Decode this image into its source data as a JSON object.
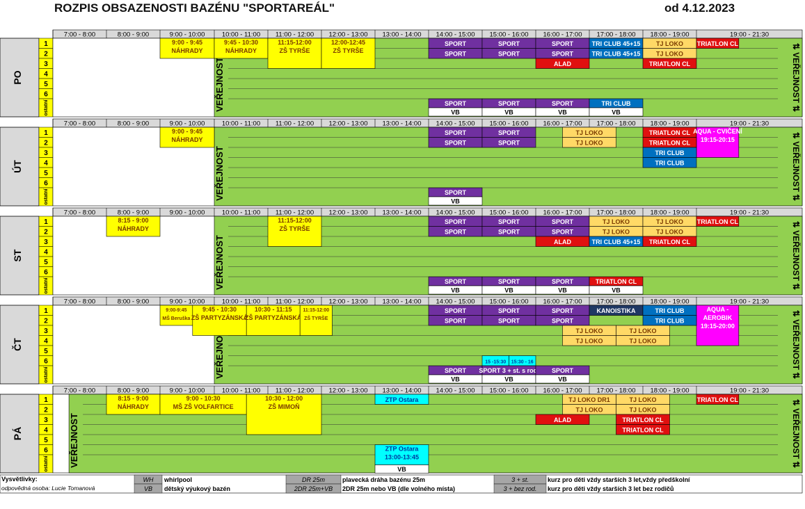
{
  "header": {
    "title": "ROZPIS OBSAZENOSTI BAZÉNU \"SPORTAREÁL\"",
    "date": "od 4.12.2023"
  },
  "time_columns": [
    "7:00 - 8:00",
    "8:00 - 9:00",
    "9:00 - 10:00",
    "10:00 - 11:00",
    "11:00 - 12:00",
    "12:00 - 13:00",
    "13:00 - 14:00",
    "14:00 - 15:00",
    "15:00 - 16:00",
    "16:00 - 17:00",
    "17:00 - 18:00",
    "18:00 - 19:00",
    "19:00 - 21:30"
  ],
  "lane_labels": [
    "1",
    "2",
    "3",
    "4",
    "5",
    "6",
    "ostatní"
  ],
  "public_label": "VEŘEJNOST",
  "colors": {
    "green": "#92D050",
    "yellow": "#FFFF00",
    "purple": "#7030A0",
    "blue": "#0070C0",
    "red": "#E01010",
    "orange": "#FFD966",
    "magenta": "#FF00FF",
    "cyan": "#00FFFF",
    "navy": "#1F3864",
    "grey": "#D9D9D9"
  },
  "days": [
    {
      "name": "PO",
      "start_hour": 10,
      "blocks": [
        {
          "lane": 0,
          "t0": 9,
          "t1": 10,
          "rows": 2,
          "fill": "yellow",
          "lines": [
            "9:00 - 9:45",
            "NÁHRADY"
          ]
        },
        {
          "lane": 0,
          "t0": 10,
          "t1": 11,
          "rows": 2,
          "fill": "yellow",
          "lines": [
            "9:45 - 10:30",
            "NÁHRADY"
          ]
        },
        {
          "lane": 0,
          "t0": 11,
          "t1": 12,
          "rows": 3,
          "fill": "yellow",
          "lines": [
            "11:15-12:00",
            "ZŠ TYRŠE"
          ]
        },
        {
          "lane": 0,
          "t0": 12,
          "t1": 13,
          "rows": 3,
          "fill": "yellow",
          "lines": [
            "12:00-12:45",
            "ZŠ TYRŠE"
          ]
        },
        {
          "lane": 0,
          "t0": 14,
          "t1": 15,
          "fill": "purple",
          "lines": [
            "SPORT"
          ]
        },
        {
          "lane": 0,
          "t0": 15,
          "t1": 16,
          "fill": "purple",
          "lines": [
            "SPORT"
          ]
        },
        {
          "lane": 0,
          "t0": 16,
          "t1": 17,
          "fill": "purple",
          "lines": [
            "SPORT"
          ]
        },
        {
          "lane": 0,
          "t0": 17,
          "t1": 18,
          "fill": "blue",
          "lines": [
            "TRI CLUB 45+15"
          ]
        },
        {
          "lane": 0,
          "t0": 18,
          "t1": 19,
          "fill": "orange",
          "lines": [
            "TJ LOKO"
          ]
        },
        {
          "lane": 0,
          "t0": 19,
          "t1": 20,
          "fill": "red",
          "lines": [
            "TRIATLON CL"
          ]
        },
        {
          "lane": 1,
          "t0": 14,
          "t1": 15,
          "fill": "purple",
          "lines": [
            "SPORT"
          ]
        },
        {
          "lane": 1,
          "t0": 15,
          "t1": 16,
          "fill": "purple",
          "lines": [
            "SPORT"
          ]
        },
        {
          "lane": 1,
          "t0": 16,
          "t1": 17,
          "fill": "purple",
          "lines": [
            "SPORT"
          ]
        },
        {
          "lane": 1,
          "t0": 17,
          "t1": 18,
          "fill": "blue",
          "lines": [
            "TRI CLUB 45+15"
          ]
        },
        {
          "lane": 1,
          "t0": 18,
          "t1": 19,
          "fill": "orange",
          "lines": [
            "TJ LOKO"
          ]
        },
        {
          "lane": 2,
          "t0": 16,
          "t1": 17,
          "fill": "red",
          "lines": [
            "ALAD"
          ]
        },
        {
          "lane": 2,
          "t0": 18,
          "t1": 19,
          "fill": "red",
          "lines": [
            "TRIATLON CL"
          ]
        },
        {
          "lane": 6,
          "t0": 14,
          "t1": 15,
          "fill": "purple",
          "lines": [
            "SPORT"
          ],
          "vb": "VB"
        },
        {
          "lane": 6,
          "t0": 15,
          "t1": 16,
          "fill": "purple",
          "lines": [
            "SPORT"
          ],
          "vb": "VB"
        },
        {
          "lane": 6,
          "t0": 16,
          "t1": 17,
          "fill": "purple",
          "lines": [
            "SPORT"
          ],
          "vb": "VB"
        },
        {
          "lane": 6,
          "t0": 17,
          "t1": 18,
          "fill": "blue",
          "lines": [
            "TRI CLUB"
          ],
          "vb": "VB"
        }
      ]
    },
    {
      "name": "ÚT",
      "start_hour": 10,
      "blocks": [
        {
          "lane": 0,
          "t0": 9,
          "t1": 10,
          "rows": 2,
          "fill": "yellow",
          "lines": [
            "9:00 - 9:45",
            "NÁHRADY"
          ]
        },
        {
          "lane": 0,
          "t0": 14,
          "t1": 15,
          "fill": "purple",
          "lines": [
            "SPORT"
          ]
        },
        {
          "lane": 0,
          "t0": 15,
          "t1": 16,
          "fill": "purple",
          "lines": [
            "SPORT"
          ]
        },
        {
          "lane": 0,
          "t0": 16.5,
          "t1": 17.5,
          "fill": "orange",
          "lines": [
            "TJ LOKO"
          ]
        },
        {
          "lane": 0,
          "t0": 18,
          "t1": 19,
          "fill": "red",
          "lines": [
            "TRIATLON CL"
          ]
        },
        {
          "lane": 0,
          "t0": 19,
          "t1": 20,
          "rows": 3,
          "fill": "magenta",
          "lines": [
            "AQUA - CVIČENÍ",
            "19:15-20:15"
          ]
        },
        {
          "lane": 1,
          "t0": 14,
          "t1": 15,
          "fill": "purple",
          "lines": [
            "SPORT"
          ]
        },
        {
          "lane": 1,
          "t0": 15,
          "t1": 16,
          "fill": "purple",
          "lines": [
            "SPORT"
          ]
        },
        {
          "lane": 1,
          "t0": 16.5,
          "t1": 17.5,
          "fill": "orange",
          "lines": [
            "TJ LOKO"
          ]
        },
        {
          "lane": 1,
          "t0": 18,
          "t1": 19,
          "fill": "red",
          "lines": [
            "TRIATLON CL"
          ]
        },
        {
          "lane": 2,
          "t0": 18,
          "t1": 19,
          "fill": "blue",
          "lines": [
            "TRI CLUB"
          ]
        },
        {
          "lane": 3,
          "t0": 18,
          "t1": 19,
          "fill": "blue",
          "lines": [
            "TRI CLUB"
          ]
        },
        {
          "lane": 6,
          "t0": 14,
          "t1": 15,
          "fill": "purple",
          "lines": [
            "SPORT"
          ],
          "vb": "VB"
        }
      ]
    },
    {
      "name": "ST",
      "start_hour": 10,
      "blocks": [
        {
          "lane": 0,
          "t0": 8,
          "t1": 9,
          "rows": 2,
          "fill": "yellow",
          "lines": [
            "8:15 - 9:00",
            "NÁHRADY"
          ]
        },
        {
          "lane": 0,
          "t0": 11,
          "t1": 12,
          "rows": 3,
          "fill": "yellow",
          "lines": [
            "11:15-12:00",
            "ZŠ TYRŠE"
          ]
        },
        {
          "lane": 0,
          "t0": 14,
          "t1": 15,
          "fill": "purple",
          "lines": [
            "SPORT"
          ]
        },
        {
          "lane": 0,
          "t0": 15,
          "t1": 16,
          "fill": "purple",
          "lines": [
            "SPORT"
          ]
        },
        {
          "lane": 0,
          "t0": 16,
          "t1": 17,
          "fill": "purple",
          "lines": [
            "SPORT"
          ]
        },
        {
          "lane": 0,
          "t0": 17,
          "t1": 18,
          "fill": "orange",
          "lines": [
            "TJ LOKO"
          ]
        },
        {
          "lane": 0,
          "t0": 18,
          "t1": 19,
          "fill": "orange",
          "lines": [
            "TJ LOKO"
          ]
        },
        {
          "lane": 0,
          "t0": 19,
          "t1": 20,
          "fill": "red",
          "lines": [
            "TRIATLON CL"
          ]
        },
        {
          "lane": 1,
          "t0": 14,
          "t1": 15,
          "fill": "purple",
          "lines": [
            "SPORT"
          ]
        },
        {
          "lane": 1,
          "t0": 15,
          "t1": 16,
          "fill": "purple",
          "lines": [
            "SPORT"
          ]
        },
        {
          "lane": 1,
          "t0": 16,
          "t1": 17,
          "fill": "purple",
          "lines": [
            "SPORT"
          ]
        },
        {
          "lane": 1,
          "t0": 17,
          "t1": 18,
          "fill": "orange",
          "lines": [
            "TJ LOKO"
          ]
        },
        {
          "lane": 1,
          "t0": 18,
          "t1": 19,
          "fill": "orange",
          "lines": [
            "TJ LOKO"
          ]
        },
        {
          "lane": 2,
          "t0": 16,
          "t1": 17,
          "fill": "red",
          "lines": [
            "ALAD"
          ]
        },
        {
          "lane": 2,
          "t0": 17,
          "t1": 18,
          "fill": "blue",
          "lines": [
            "TRI CLUB 45+15"
          ]
        },
        {
          "lane": 2,
          "t0": 18,
          "t1": 19,
          "fill": "red",
          "lines": [
            "TRIATLON CL"
          ]
        },
        {
          "lane": 6,
          "t0": 14,
          "t1": 15,
          "fill": "purple",
          "lines": [
            "SPORT"
          ],
          "vb": "VB"
        },
        {
          "lane": 6,
          "t0": 15,
          "t1": 16,
          "fill": "purple",
          "lines": [
            "SPORT"
          ],
          "vb": "VB"
        },
        {
          "lane": 6,
          "t0": 16,
          "t1": 17,
          "fill": "purple",
          "lines": [
            "SPORT"
          ],
          "vb": "VB"
        },
        {
          "lane": 6,
          "t0": 17,
          "t1": 18,
          "fill": "red",
          "lines": [
            "TRIATLON CL"
          ],
          "vb": "VB"
        }
      ]
    },
    {
      "name": "ČT",
      "start_hour": 10,
      "blocks": [
        {
          "lane": 0,
          "t0": 9,
          "t1": 9.6,
          "rows": 2,
          "fill": "yellow",
          "lines": [
            "9:00-9:45",
            "MŠ Beruška"
          ]
        },
        {
          "lane": 0,
          "t0": 9.6,
          "t1": 10.6,
          "rows": 3,
          "fill": "yellow",
          "lines": [
            "9:45 - 10:30",
            "ZŠ PARTYZÁNSKÁ"
          ]
        },
        {
          "lane": 0,
          "t0": 10.6,
          "t1": 11.6,
          "rows": 3,
          "fill": "yellow",
          "lines": [
            "10:30 - 11:15",
            "ZŠ PARTYZÁNSKÁ"
          ]
        },
        {
          "lane": 0,
          "t0": 11.6,
          "t1": 12.2,
          "rows": 3,
          "fill": "yellow",
          "lines": [
            "11:15-12:00",
            "ZŠ TYRŠE"
          ]
        },
        {
          "lane": 0,
          "t0": 14,
          "t1": 15,
          "fill": "purple",
          "lines": [
            "SPORT"
          ]
        },
        {
          "lane": 0,
          "t0": 15,
          "t1": 16,
          "fill": "purple",
          "lines": [
            "SPORT"
          ]
        },
        {
          "lane": 0,
          "t0": 16,
          "t1": 17,
          "fill": "purple",
          "lines": [
            "SPORT"
          ]
        },
        {
          "lane": 0,
          "t0": 17,
          "t1": 18,
          "fill": "navy",
          "lines": [
            "KANOISTIKA"
          ]
        },
        {
          "lane": 0,
          "t0": 18,
          "t1": 19,
          "fill": "blue",
          "lines": [
            "TRI CLUB"
          ]
        },
        {
          "lane": 0,
          "t0": 19,
          "t1": 20,
          "rows": 4,
          "fill": "magenta",
          "lines": [
            "AQUA -",
            "AEROBIK",
            "19:15-20:00"
          ]
        },
        {
          "lane": 1,
          "t0": 14,
          "t1": 15,
          "fill": "purple",
          "lines": [
            "SPORT"
          ]
        },
        {
          "lane": 1,
          "t0": 15,
          "t1": 16,
          "fill": "purple",
          "lines": [
            "SPORT"
          ]
        },
        {
          "lane": 1,
          "t0": 16,
          "t1": 17,
          "fill": "purple",
          "lines": [
            "SPORT"
          ]
        },
        {
          "lane": 1,
          "t0": 18,
          "t1": 19,
          "fill": "blue",
          "lines": [
            "TRI CLUB"
          ]
        },
        {
          "lane": 2,
          "t0": 16.5,
          "t1": 17.5,
          "fill": "orange",
          "lines": [
            "TJ LOKO"
          ]
        },
        {
          "lane": 2,
          "t0": 17.5,
          "t1": 18.5,
          "fill": "orange",
          "lines": [
            "TJ LOKO"
          ]
        },
        {
          "lane": 3,
          "t0": 16.5,
          "t1": 17.5,
          "fill": "orange",
          "lines": [
            "TJ LOKO"
          ]
        },
        {
          "lane": 3,
          "t0": 17.5,
          "t1": 18.5,
          "fill": "orange",
          "lines": [
            "TJ LOKO"
          ]
        },
        {
          "lane": 5,
          "t0": 15,
          "t1": 15.5,
          "rows": 1,
          "fill": "cyan",
          "lines": [
            "15 -15:30"
          ]
        },
        {
          "lane": 5,
          "t0": 15.5,
          "t1": 16,
          "rows": 1,
          "fill": "cyan",
          "lines": [
            "15:30 - 16"
          ]
        },
        {
          "lane": 6,
          "t0": 14,
          "t1": 15,
          "fill": "purple",
          "lines": [
            "SPORT"
          ],
          "vb": "VB"
        },
        {
          "lane": 6,
          "t0": 15,
          "t1": 16,
          "fill": "purple",
          "lines": [
            "SPORT 3 + st. s rod."
          ],
          "vb": "VB"
        },
        {
          "lane": 6,
          "t0": 16,
          "t1": 17,
          "fill": "purple",
          "lines": [
            "SPORT"
          ],
          "vb": "VB"
        }
      ]
    },
    {
      "name": "PÁ",
      "start_hour": 7.3,
      "blocks": [
        {
          "lane": 0,
          "t0": 8,
          "t1": 9,
          "rows": 2,
          "fill": "yellow",
          "lines": [
            "8:15 - 9:00",
            "NÁHRADY"
          ]
        },
        {
          "lane": 0,
          "t0": 9,
          "t1": 10.6,
          "rows": 2,
          "fill": "yellow",
          "lines": [
            "9:00 - 10:30",
            "MŠ ZŠ VOLFARTICE"
          ]
        },
        {
          "lane": 0,
          "t0": 10.6,
          "t1": 12,
          "rows": 4,
          "fill": "yellow",
          "lines": [
            "10:30 - 12:00",
            "ZŠ MIMOŇ"
          ]
        },
        {
          "lane": 0,
          "t0": 13,
          "t1": 14,
          "fill": "cyan",
          "lines": [
            "ZTP Ostara"
          ]
        },
        {
          "lane": 0,
          "t0": 16.5,
          "t1": 17.5,
          "fill": "orange",
          "lines": [
            "TJ LOKO DR1"
          ]
        },
        {
          "lane": 0,
          "t0": 17.5,
          "t1": 18.5,
          "fill": "orange",
          "lines": [
            "TJ LOKO"
          ]
        },
        {
          "lane": 0,
          "t0": 19,
          "t1": 20,
          "fill": "red",
          "lines": [
            "TRIATLON CL"
          ]
        },
        {
          "lane": 1,
          "t0": 16.5,
          "t1": 17.5,
          "fill": "orange",
          "lines": [
            "TJ LOKO"
          ]
        },
        {
          "lane": 1,
          "t0": 17.5,
          "t1": 18.5,
          "fill": "orange",
          "lines": [
            "TJ LOKO"
          ]
        },
        {
          "lane": 2,
          "t0": 16,
          "t1": 17,
          "fill": "red",
          "lines": [
            "ALAD"
          ]
        },
        {
          "lane": 2,
          "t0": 17.5,
          "t1": 18.5,
          "fill": "red",
          "lines": [
            "TRIATLON CL"
          ]
        },
        {
          "lane": 3,
          "t0": 17.5,
          "t1": 18.5,
          "fill": "red",
          "lines": [
            "TRIATLON CL"
          ]
        },
        {
          "lane": 5,
          "t0": 13,
          "t1": 14,
          "rows": 2,
          "fill": "cyan",
          "lines": [
            "ZTP Ostara",
            "13:00-13:45"
          ],
          "vb": "VB"
        }
      ]
    }
  ],
  "legend": {
    "title": "Vysvětlivky:",
    "person": "odpovědná osoba: Lucie Tomanová",
    "items": [
      {
        "code": "WH",
        "text": "whirlpool"
      },
      {
        "code": "VB",
        "text": "dětský výukový bazén"
      },
      {
        "code": "DR 25m",
        "text": "plavecká dráha bazénu 25m"
      },
      {
        "code": "2DR 25m+VB",
        "text": "2DR 25m nebo VB (dle volného místa)"
      },
      {
        "code": "3 + st.",
        "text": "kurz pro děti vždy starších 3 let,vždy předškolní"
      },
      {
        "code": "3 + bez rod.",
        "text": "kurz pro děti vždy starších 3 let bez rodičů"
      }
    ]
  }
}
